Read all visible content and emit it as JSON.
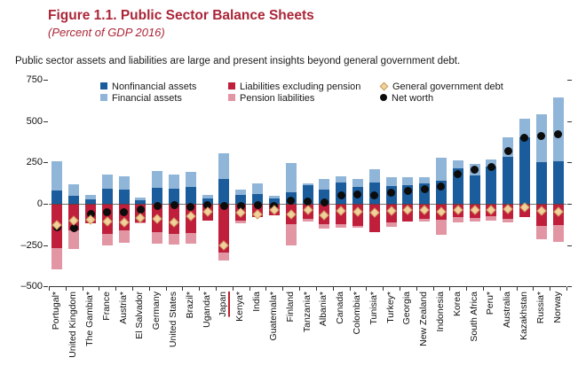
{
  "figure": {
    "title": "Figure 1.1. Public Sector Balance Sheets",
    "subtitle": "(Percent of GDP 2016)",
    "strapline": "Public sector assets and liabilities are large and present insights beyond general government debt."
  },
  "colors": {
    "title_red": "#ab2538",
    "nonfinancial_assets": "#1b5d9c",
    "financial_assets": "#8fb5d8",
    "liabilities_excl_pension": "#c01f3c",
    "pension_liabilities": "#e295a3",
    "general_government_debt": "#f2d19f",
    "net_worth": "#0c0c0c",
    "highlight_underline": "#c01f2e"
  },
  "legend": [
    {
      "label": "Nonfinancial assets",
      "marker": "square",
      "color": "#1b5d9c",
      "col": 0,
      "row": 0
    },
    {
      "label": "Financial assets",
      "marker": "square",
      "color": "#8fb5d8",
      "col": 0,
      "row": 1
    },
    {
      "label": "Liabilities excluding pension",
      "marker": "square",
      "color": "#c01f3c",
      "col": 1,
      "row": 0
    },
    {
      "label": "Pension liabilities",
      "marker": "square",
      "color": "#e295a3",
      "col": 1,
      "row": 1
    },
    {
      "label": "General government debt",
      "marker": "diamond",
      "color": "#f2d19f",
      "col": 2,
      "row": 0
    },
    {
      "label": "Net worth",
      "marker": "dot",
      "color": "#0c0c0c",
      "col": 2,
      "row": 1
    }
  ],
  "chart_data": {
    "type": "bar",
    "stacked": true,
    "units": "percent of GDP",
    "ylim": [
      -500,
      750
    ],
    "yticks": [
      {
        "value": 750,
        "label": "750"
      },
      {
        "value": 500,
        "label": "500"
      },
      {
        "value": 250,
        "label": "250"
      },
      {
        "value": 0,
        "label": "0"
      },
      {
        "value": -250,
        "label": "–250"
      },
      {
        "value": -500,
        "label": "–500"
      }
    ],
    "grid": "zero-line-only",
    "legend_position": "top-inside",
    "highlighted_category": "Japan",
    "categories": [
      "Portugal*",
      "United Kingdom",
      "The Gambia*",
      "France",
      "Austria*",
      "El Salvador",
      "Germany",
      "United States",
      "Brazil*",
      "Uganda*",
      "Japan",
      "Kenya*",
      "India",
      "Guatemala*",
      "Finland",
      "Tanzania*",
      "Albania*",
      "Canada",
      "Colombia*",
      "Tunisia*",
      "Turkey*",
      "Georgia",
      "New Zealand",
      "Indonesia",
      "Korea",
      "South Africa",
      "Peru*",
      "Australia",
      "Kazakhstan",
      "Russia*",
      "Norway"
    ],
    "series": [
      {
        "name": "Nonfinancial assets",
        "type": "bar-positive",
        "values": [
          80,
          50,
          25,
          90,
          85,
          20,
          95,
          90,
          100,
          30,
          150,
          55,
          60,
          30,
          70,
          110,
          85,
          130,
          100,
          130,
          105,
          115,
          125,
          140,
          215,
          170,
          225,
          285,
          400,
          250,
          255
        ]
      },
      {
        "name": "Financial assets",
        "type": "bar-positive",
        "values": [
          175,
          70,
          30,
          85,
          80,
          20,
          105,
          85,
          95,
          25,
          155,
          30,
          65,
          20,
          175,
          15,
          65,
          35,
          50,
          80,
          55,
          45,
          35,
          140,
          45,
          70,
          40,
          115,
          115,
          290,
          390
        ]
      },
      {
        "name": "Liabilities excluding pension",
        "type": "bar-negative",
        "values": [
          -265,
          -160,
          -120,
          -180,
          -160,
          -110,
          -170,
          -180,
          -175,
          -100,
          -295,
          -100,
          -80,
          -70,
          -125,
          -90,
          -125,
          -125,
          -135,
          -170,
          -115,
          -105,
          -90,
          -95,
          -80,
          -85,
          -75,
          -90,
          -80,
          -135,
          -130
        ]
      },
      {
        "name": "Pension liabilities",
        "type": "bar-negative",
        "values": [
          -130,
          -115,
          0,
          -70,
          -75,
          -10,
          -70,
          -65,
          -65,
          0,
          -50,
          -20,
          0,
          0,
          -125,
          -15,
          -25,
          -20,
          -10,
          0,
          -25,
          0,
          -15,
          -95,
          -30,
          -20,
          -25,
          -20,
          0,
          -80,
          -100
        ]
      },
      {
        "name": "General government debt",
        "type": "diamond-marker",
        "values": [
          -130,
          -100,
          -95,
          -105,
          -110,
          -85,
          -90,
          -110,
          -75,
          -50,
          -250,
          -55,
          -65,
          -35,
          -65,
          -40,
          -70,
          -45,
          -50,
          -55,
          -45,
          -40,
          -40,
          -50,
          -40,
          -35,
          -40,
          -30,
          -20,
          -45,
          -50
        ]
      },
      {
        "name": "Net worth",
        "type": "dot-marker",
        "values": [
          -140,
          -145,
          -60,
          -50,
          -50,
          -35,
          -15,
          -10,
          -20,
          -10,
          -15,
          -15,
          -10,
          -15,
          20,
          15,
          10,
          50,
          55,
          50,
          65,
          80,
          90,
          105,
          180,
          205,
          220,
          320,
          400,
          410,
          420
        ]
      }
    ]
  }
}
